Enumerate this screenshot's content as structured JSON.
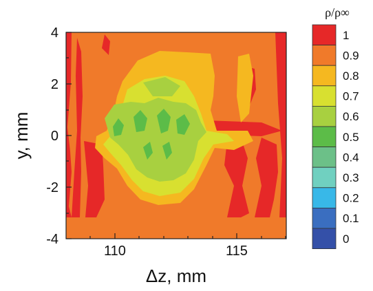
{
  "chart_data": {
    "type": "heatmap",
    "title": "",
    "xlabel": "Δz, mm",
    "ylabel": "y, mm",
    "xlim": [
      108,
      117
    ],
    "ylim": [
      -4,
      4
    ],
    "x_ticks": [
      "110",
      "115"
    ],
    "y_ticks": [
      "4",
      "2",
      "0",
      "-2",
      "-4"
    ],
    "colorbar": {
      "title": "ρ/ρ∞",
      "levels": [
        "1",
        "0.9",
        "0.8",
        "0.7",
        "0.6",
        "0.5",
        "0.4",
        "0.3",
        "0.2",
        "0.1",
        "0"
      ],
      "colors": [
        "#e62828",
        "#f07a2a",
        "#f5b820",
        "#d8e030",
        "#a8d040",
        "#5cbc48",
        "#6cc088",
        "#70d0c0",
        "#38b8e8",
        "#3a6ec0",
        "#3450a8"
      ]
    },
    "grid": false,
    "contour_regions": [
      {
        "level": "1",
        "desc": "outer strips at both z edges and streaks near y=0"
      },
      {
        "level": "0.9",
        "desc": "background field"
      },
      {
        "level": "0.8",
        "desc": "upper lobe around z≈110–113.5, y up to ≈3.3; lower ring down to ≈-3"
      },
      {
        "level": "0.7",
        "desc": "core region z≈109.8–113.3, y≈-2.6 to 2.2"
      },
      {
        "level": "0.6",
        "desc": "inner core around y≈0"
      },
      {
        "level": "0.5",
        "desc": "small patches near y≈0 to 1"
      }
    ]
  }
}
